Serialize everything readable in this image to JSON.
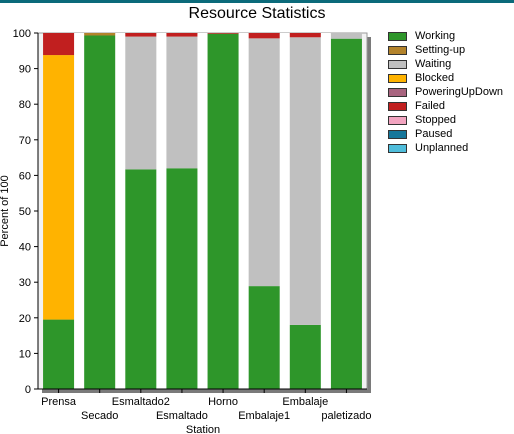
{
  "chart_data": {
    "type": "bar",
    "stacked": true,
    "title": "Resource Statistics",
    "xlabel": "Station",
    "ylabel": "Percent of 100",
    "ylim": [
      0,
      100
    ],
    "yticks": [
      0,
      10,
      20,
      30,
      40,
      50,
      60,
      70,
      80,
      90,
      100
    ],
    "grid": "vertical-bands",
    "legend_position": "right",
    "categories": [
      "Prensa",
      "Secado",
      "Esmaltado2",
      "Esmaltado",
      "Horno",
      "Embalaje1",
      "Embalaje",
      "paletizado"
    ],
    "series": [
      {
        "name": "Working",
        "color": "#2e962a",
        "values": [
          19.5,
          99.3,
          61.7,
          62.0,
          99.8,
          28.9,
          18.0,
          98.4
        ]
      },
      {
        "name": "Setting-up",
        "color": "#b3832b",
        "values": [
          0,
          0.7,
          0,
          0,
          0,
          0,
          0,
          0
        ]
      },
      {
        "name": "Waiting",
        "color": "#c0c0c0",
        "values": [
          0,
          0,
          37.3,
          37.0,
          0,
          69.6,
          80.8,
          1.6
        ]
      },
      {
        "name": "Blocked",
        "color": "#ffb300",
        "values": [
          74.3,
          0,
          0,
          0,
          0,
          0,
          0,
          0
        ]
      },
      {
        "name": "PoweringUpDown",
        "color": "#a8647f",
        "values": [
          0,
          0,
          0,
          0,
          0,
          0,
          0,
          0
        ]
      },
      {
        "name": "Failed",
        "color": "#c11f1f",
        "values": [
          6.2,
          0,
          1.0,
          1.0,
          0.2,
          1.5,
          1.2,
          0
        ]
      },
      {
        "name": "Stopped",
        "color": "#f2a4c0",
        "values": [
          0,
          0,
          0,
          0,
          0,
          0,
          0,
          0
        ]
      },
      {
        "name": "Paused",
        "color": "#15769a",
        "values": [
          0,
          0,
          0,
          0,
          0,
          0,
          0,
          0
        ]
      },
      {
        "name": "Unplanned",
        "color": "#4fbddb",
        "values": [
          0,
          0,
          0,
          0,
          0,
          0,
          0,
          0
        ]
      }
    ]
  }
}
